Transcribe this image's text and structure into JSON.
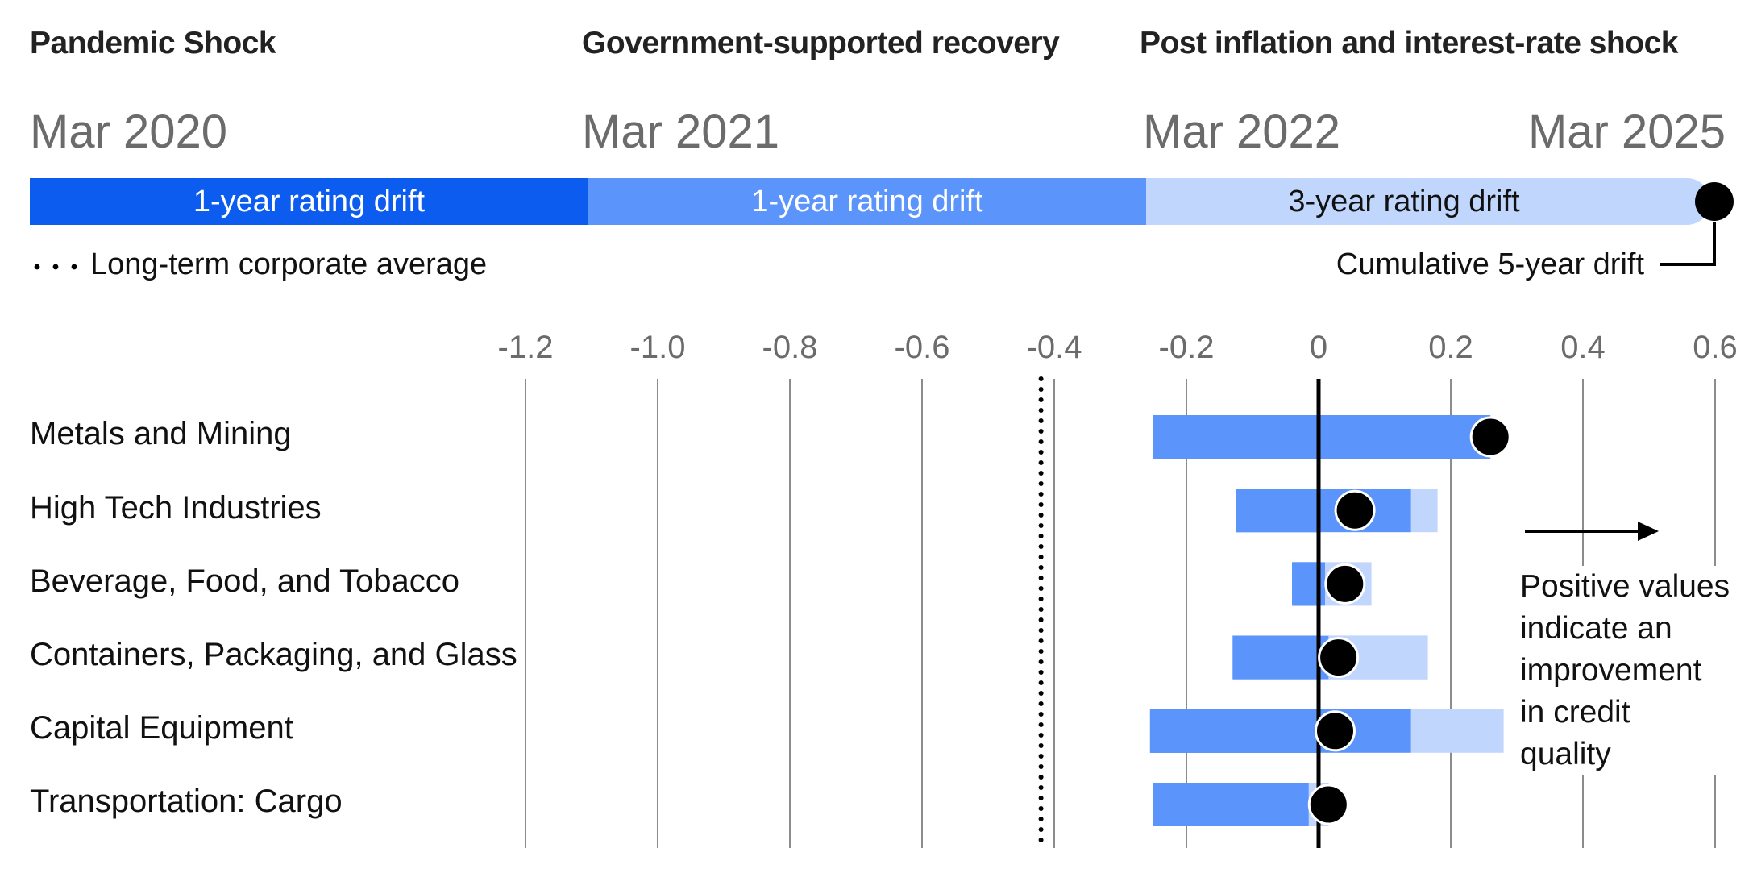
{
  "phases": [
    {
      "title": "Pandemic Shock",
      "date": "Mar 2020",
      "drift_label": "1-year rating drift"
    },
    {
      "title": "Government-supported recovery",
      "date": "Mar 2021",
      "drift_label": "1-year rating drift"
    },
    {
      "title": "Post inflation and interest-rate shock",
      "date": "Mar 2022",
      "drift_label": "3-year rating drift"
    }
  ],
  "end_date": "Mar 2025",
  "legend": {
    "corporate_average": "Long-term corporate average",
    "cumulative": "Cumulative 5-year drift"
  },
  "note_lines": [
    "Positive values",
    "indicate an",
    "improvement",
    "in credit",
    "quality"
  ],
  "colors": {
    "phase1": "#0c5cf0",
    "phase2": "#5b95fb",
    "phase3": "#c1d6fd",
    "dot": "#000000",
    "grid": "#8c8c8c",
    "axis_label": "#6b6b6b"
  },
  "chart_data": {
    "type": "bar",
    "orientation": "horizontal",
    "stacked_sequential": true,
    "xlim": [
      -1.3,
      0.6
    ],
    "xticks": [
      "-1.2",
      "-1.0",
      "-0.8",
      "-0.6",
      "-0.4",
      "-0.2",
      "0",
      "0.2",
      "0.4",
      "0.6"
    ],
    "reference_line": -0.42,
    "categories": [
      "Metals and Mining",
      "High Tech Industries",
      "Beverage, Food, and Tobacco",
      "Containers, Packaging, and Glass",
      "Capital Equipment",
      "Transportation: Cargo"
    ],
    "series": [
      {
        "name": "1-year rating drift",
        "values": [
          -0.25,
          -0.125,
          -0.04,
          -0.13,
          -0.255,
          -0.25
        ]
      },
      {
        "name": "1-year rating drift",
        "values": [
          0.51,
          0.265,
          0.05,
          0.295,
          0.395,
          0.265
        ]
      },
      {
        "name": "3-year rating drift",
        "values": [
          0.0,
          0.04,
          0.07,
          -0.15,
          0.14,
          -0.03
        ]
      },
      {
        "name": "Cumulative 5-year drift",
        "values": [
          0.26,
          0.055,
          0.04,
          0.03,
          0.025,
          0.015
        ]
      }
    ]
  }
}
